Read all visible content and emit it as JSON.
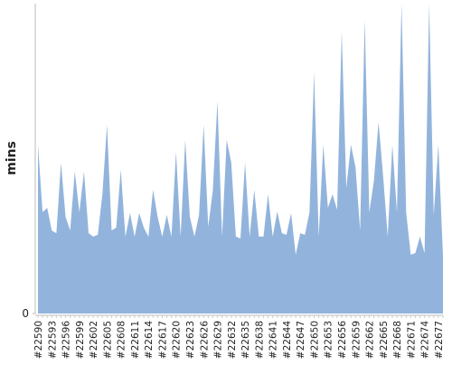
{
  "chart_data": {
    "type": "area",
    "y_label": "mins",
    "color": "#92b4dc",
    "categories": [
      "#22590",
      null,
      null,
      "#22593",
      null,
      null,
      "#22596",
      null,
      null,
      "#22599",
      null,
      null,
      "#22602",
      null,
      null,
      "#22605",
      null,
      null,
      "#22608",
      null,
      null,
      "#22611",
      null,
      null,
      "#22614",
      null,
      null,
      "#22617",
      null,
      null,
      "#22620",
      null,
      null,
      "#22623",
      null,
      null,
      "#22626",
      null,
      null,
      "#22629",
      null,
      null,
      "#22632",
      null,
      null,
      "#22635",
      null,
      null,
      "#22638",
      null,
      null,
      "#22641",
      null,
      null,
      "#22644",
      null,
      null,
      "#22647",
      null,
      null,
      "#22650",
      null,
      null,
      "#22653",
      null,
      null,
      "#22656",
      null,
      null,
      "#22659",
      null,
      null,
      "#22662",
      null,
      null,
      "#22665",
      null,
      null,
      "#22668",
      null,
      null,
      "#22671",
      null,
      null,
      "#22674",
      null,
      null,
      "#22677",
      null
    ],
    "values": [
      54.5,
      32.7,
      34.1,
      26.8,
      25.9,
      48.7,
      31.2,
      26.8,
      45.8,
      32.7,
      45.8,
      25.9,
      24.8,
      25.4,
      38.5,
      60.9,
      26.8,
      27.7,
      46.4,
      24.8,
      32.4,
      24.8,
      32.4,
      27.7,
      24.8,
      39.9,
      31.2,
      24.8,
      31.8,
      24.8,
      52.2,
      24.8,
      56.0,
      31.2,
      24.8,
      31.8,
      60.9,
      28.0,
      39.9,
      68.5,
      24.8,
      56.0,
      48.7,
      24.8,
      24.2,
      48.7,
      24.8,
      39.9,
      24.8,
      24.8,
      38.5,
      24.8,
      32.9,
      25.9,
      25.4,
      32.4,
      19.0,
      25.9,
      25.4,
      32.7,
      77.8,
      24.8,
      54.5,
      34.1,
      38.5,
      33.5,
      91.0,
      40.5,
      54.5,
      47.2,
      26.8,
      94.8,
      32.7,
      42.9,
      61.8,
      44.3,
      24.8,
      54.5,
      32.7,
      100,
      32.7,
      19.0,
      19.5,
      24.8,
      19.5,
      100,
      31.8,
      54.5,
      18.7
    ],
    "ylim": [
      0,
      100
    ],
    "yticks": [
      0
    ]
  }
}
